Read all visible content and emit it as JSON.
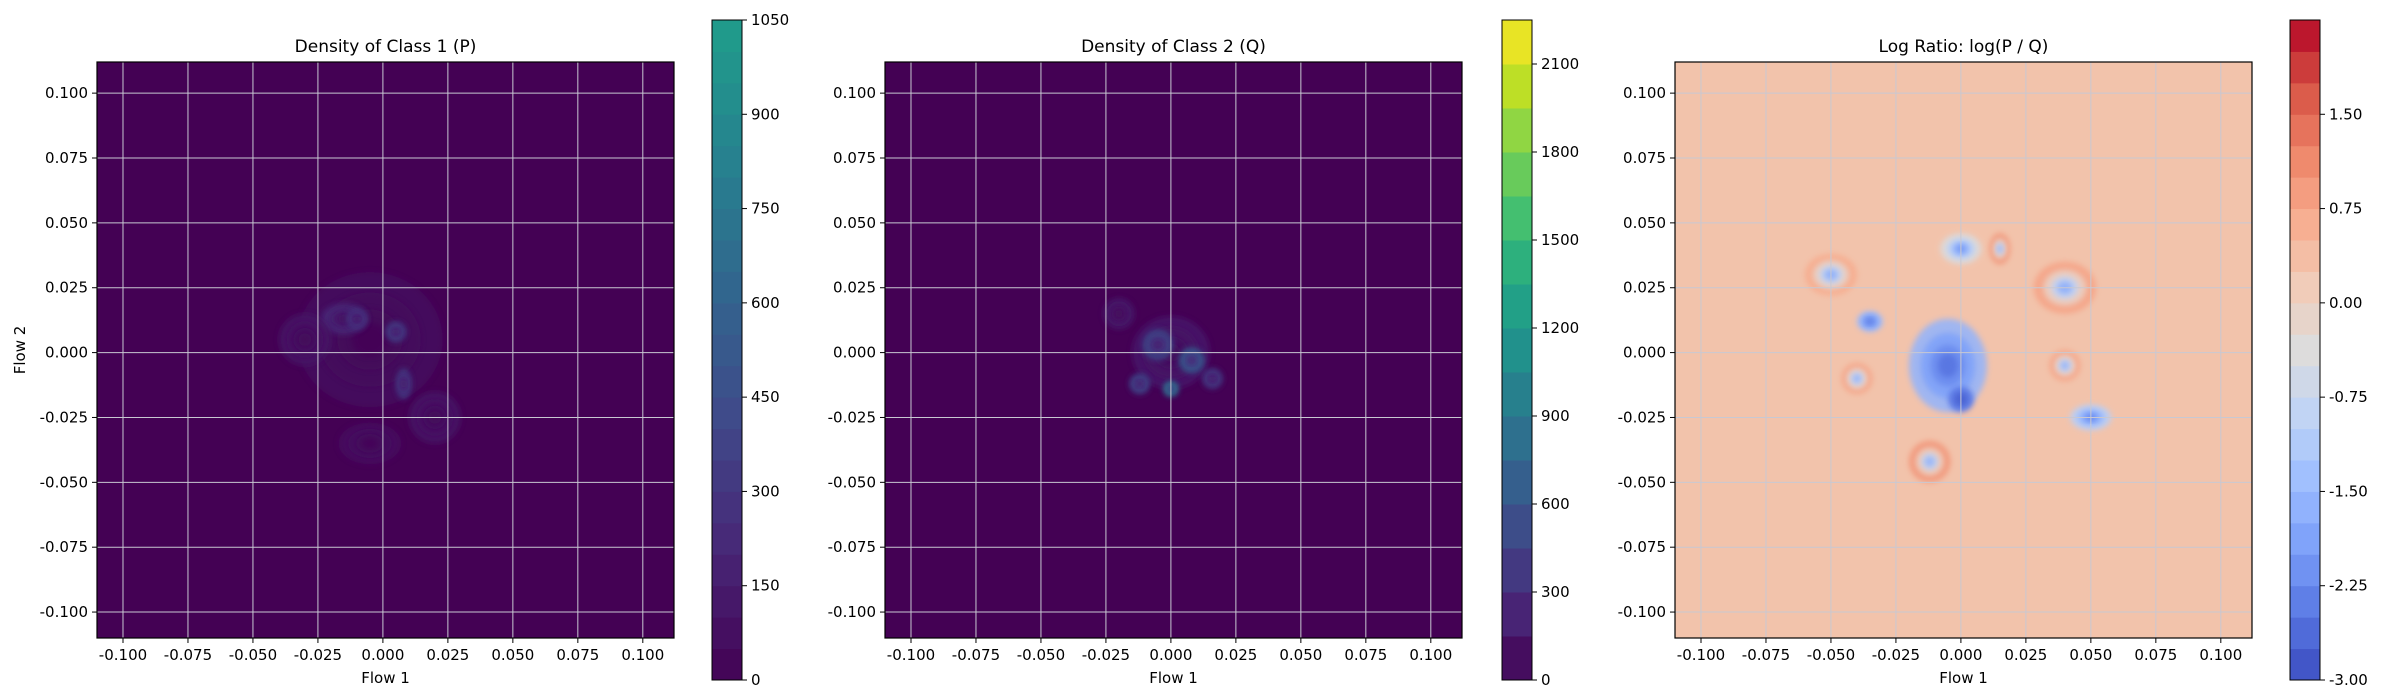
{
  "figure": {
    "panels": 3,
    "background": "#ffffff",
    "grid_color": "#c8c8d2"
  },
  "chart_data": [
    {
      "type": "heatmap",
      "title": "Density of Class 1 (P)",
      "xlabel": "Flow 1",
      "ylabel": "Flow 2",
      "xlim": [
        -0.11,
        0.112
      ],
      "ylim": [
        -0.11,
        0.112
      ],
      "x_ticks": [
        "-0.100",
        "-0.075",
        "-0.050",
        "-0.025",
        "0.000",
        "0.025",
        "0.050",
        "0.075",
        "0.100"
      ],
      "x_tick_values": [
        -0.1,
        -0.075,
        -0.05,
        -0.025,
        0.0,
        0.025,
        0.05,
        0.075,
        0.1
      ],
      "y_ticks": [
        "0.100",
        "0.075",
        "0.050",
        "0.025",
        "0.000",
        "-0.025",
        "-0.050",
        "-0.075",
        "-0.100"
      ],
      "y_tick_values": [
        0.1,
        0.075,
        0.05,
        0.025,
        0.0,
        -0.025,
        -0.05,
        -0.075,
        -0.1
      ],
      "grid": true,
      "colormap": "viridis",
      "background_color": "#440154",
      "colorbar": {
        "min": 0,
        "max": 1050,
        "ticks": [
          "0",
          "150",
          "300",
          "450",
          "600",
          "750",
          "900",
          "1050"
        ],
        "tick_values": [
          0,
          150,
          300,
          450,
          600,
          750,
          900,
          1050
        ],
        "levels": 21,
        "colors": [
          "#440154",
          "#482777",
          "#3f4a8a",
          "#31678e",
          "#26838f",
          "#1f9d8a"
        ]
      },
      "hotspots": [
        {
          "x": -0.005,
          "y": 0.005,
          "sx": 0.028,
          "sy": 0.026,
          "value": 60
        },
        {
          "x": -0.015,
          "y": 0.013,
          "sx": 0.009,
          "sy": 0.006,
          "value": 220
        },
        {
          "x": -0.01,
          "y": 0.013,
          "sx": 0.004,
          "sy": 0.004,
          "value": 300
        },
        {
          "x": 0.005,
          "y": 0.008,
          "sx": 0.004,
          "sy": 0.004,
          "value": 360
        },
        {
          "x": 0.008,
          "y": -0.012,
          "sx": 0.003,
          "sy": 0.006,
          "value": 330
        },
        {
          "x": -0.03,
          "y": 0.005,
          "sx": 0.01,
          "sy": 0.01,
          "value": 110
        },
        {
          "x": 0.02,
          "y": -0.025,
          "sx": 0.01,
          "sy": 0.01,
          "value": 110
        },
        {
          "x": -0.005,
          "y": -0.035,
          "sx": 0.012,
          "sy": 0.008,
          "value": 80
        }
      ]
    },
    {
      "type": "heatmap",
      "title": "Density of Class 2 (Q)",
      "xlabel": "Flow 1",
      "ylabel": "",
      "xlim": [
        -0.11,
        0.112
      ],
      "ylim": [
        -0.11,
        0.112
      ],
      "x_ticks": [
        "-0.100",
        "-0.075",
        "-0.050",
        "-0.025",
        "0.000",
        "0.025",
        "0.050",
        "0.075",
        "0.100"
      ],
      "x_tick_values": [
        -0.1,
        -0.075,
        -0.05,
        -0.025,
        0.0,
        0.025,
        0.05,
        0.075,
        0.1
      ],
      "y_ticks": [
        "0.100",
        "0.075",
        "0.050",
        "0.025",
        "0.000",
        "-0.025",
        "-0.050",
        "-0.075",
        "-0.100"
      ],
      "y_tick_values": [
        0.1,
        0.075,
        0.05,
        0.025,
        0.0,
        -0.025,
        -0.05,
        -0.075,
        -0.1
      ],
      "grid": true,
      "colormap": "viridis",
      "background_color": "#440154",
      "colorbar": {
        "min": 0,
        "max": 2250,
        "ticks": [
          "0",
          "300",
          "600",
          "900",
          "1200",
          "1500",
          "1800",
          "2100"
        ],
        "tick_values": [
          0,
          300,
          600,
          900,
          1200,
          1500,
          1800,
          2100
        ],
        "levels": 15,
        "colors": [
          "#440154",
          "#482475",
          "#414487",
          "#355f8d",
          "#2a788e",
          "#21918c",
          "#22a884",
          "#44bf70",
          "#7ad151",
          "#bddf26",
          "#fde725"
        ]
      },
      "hotspots": [
        {
          "x": 0.0,
          "y": 0.0,
          "sx": 0.015,
          "sy": 0.014,
          "value": 150
        },
        {
          "x": -0.005,
          "y": 0.003,
          "sx": 0.006,
          "sy": 0.006,
          "value": 500
        },
        {
          "x": 0.0,
          "y": -0.014,
          "sx": 0.003,
          "sy": 0.003,
          "value": 900
        },
        {
          "x": 0.008,
          "y": -0.003,
          "sx": 0.005,
          "sy": 0.005,
          "value": 650
        },
        {
          "x": -0.012,
          "y": -0.012,
          "sx": 0.004,
          "sy": 0.004,
          "value": 500
        },
        {
          "x": 0.016,
          "y": -0.01,
          "sx": 0.004,
          "sy": 0.004,
          "value": 400
        },
        {
          "x": -0.02,
          "y": 0.015,
          "sx": 0.006,
          "sy": 0.006,
          "value": 160
        }
      ]
    },
    {
      "type": "heatmap",
      "title": "Log Ratio: log(P / Q)",
      "xlabel": "Flow 1",
      "ylabel": "",
      "xlim": [
        -0.11,
        0.112
      ],
      "ylim": [
        -0.11,
        0.112
      ],
      "x_ticks": [
        "-0.100",
        "-0.075",
        "-0.050",
        "-0.025",
        "0.000",
        "0.025",
        "0.050",
        "0.075",
        "0.100"
      ],
      "x_tick_values": [
        -0.1,
        -0.075,
        -0.05,
        -0.025,
        0.0,
        0.025,
        0.05,
        0.075,
        0.1
      ],
      "y_ticks": [
        "0.100",
        "0.075",
        "0.050",
        "0.025",
        "0.000",
        "-0.025",
        "-0.050",
        "-0.075",
        "-0.100"
      ],
      "y_tick_values": [
        0.1,
        0.075,
        0.05,
        0.025,
        0.0,
        -0.025,
        -0.05,
        -0.075,
        -0.1
      ],
      "grid": true,
      "colormap": "coolwarm",
      "background_color": "#f2c3ab",
      "colorbar": {
        "min": -3.0,
        "max": 2.25,
        "ticks": [
          "-3.00",
          "-2.25",
          "-1.50",
          "-0.75",
          "0.00",
          "0.75",
          "1.50"
        ],
        "tick_values": [
          -3.0,
          -2.25,
          -1.5,
          -0.75,
          0.0,
          0.75,
          1.5
        ],
        "levels": 21,
        "colors": [
          "#3b4cc0",
          "#5977e3",
          "#7b9ff9",
          "#9ebeff",
          "#c0d4f5",
          "#dddcdc",
          "#f2cbb7",
          "#f7ac8e",
          "#ee8468",
          "#d65244",
          "#b40426"
        ]
      },
      "hotspots": [
        {
          "x": -0.005,
          "y": -0.005,
          "sx": 0.015,
          "sy": 0.018,
          "value": -1.6
        },
        {
          "x": 0.0,
          "y": -0.018,
          "sx": 0.005,
          "sy": 0.005,
          "value": -2.4
        },
        {
          "x": -0.035,
          "y": 0.012,
          "sx": 0.005,
          "sy": 0.004,
          "value": -1.5
        },
        {
          "x": 0.05,
          "y": -0.025,
          "sx": 0.008,
          "sy": 0.005,
          "value": -1.0
        },
        {
          "x": 0.0,
          "y": 0.04,
          "sx": 0.008,
          "sy": 0.006,
          "value": -0.4
        },
        {
          "x": -0.012,
          "y": -0.042,
          "sx": 0.008,
          "sy": 0.008,
          "value": 1.0
        },
        {
          "x": 0.015,
          "y": 0.04,
          "sx": 0.004,
          "sy": 0.006,
          "value": 1.0
        },
        {
          "x": 0.04,
          "y": 0.025,
          "sx": 0.012,
          "sy": 0.01,
          "value": 0.8
        },
        {
          "x": -0.05,
          "y": 0.03,
          "sx": 0.01,
          "sy": 0.008,
          "value": 0.7
        },
        {
          "x": -0.04,
          "y": -0.01,
          "sx": 0.006,
          "sy": 0.006,
          "value": 0.8
        },
        {
          "x": 0.04,
          "y": -0.005,
          "sx": 0.006,
          "sy": 0.006,
          "value": 0.8
        }
      ]
    }
  ]
}
